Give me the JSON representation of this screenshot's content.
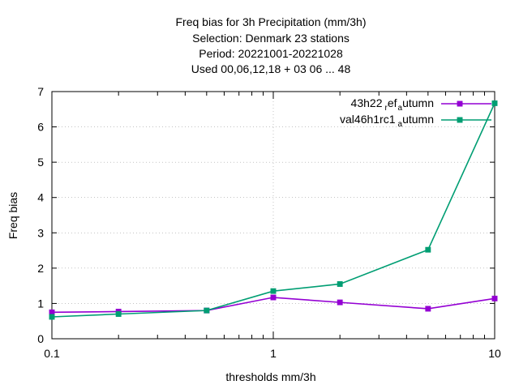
{
  "chart_data": {
    "type": "line",
    "title_lines": [
      "Freq bias  for 3h Precipitation (mm/3h)",
      "Selection: Denmark     23 stations",
      "Period: 20221001-20221028",
      "Used  00,06,12,18  + 03 06 ... 48"
    ],
    "xlabel": "thresholds mm/3h",
    "ylabel": "Freq bias",
    "x_scale": "log",
    "xlim": [
      0.1,
      10
    ],
    "ylim": [
      0,
      7
    ],
    "x_ticks": [
      {
        "value": 0.1,
        "label": "0.1"
      },
      {
        "value": 1,
        "label": "1"
      },
      {
        "value": 10,
        "label": "10"
      }
    ],
    "y_ticks": [
      {
        "value": 0,
        "label": "0"
      },
      {
        "value": 1,
        "label": "1"
      },
      {
        "value": 2,
        "label": "2"
      },
      {
        "value": 3,
        "label": "3"
      },
      {
        "value": 4,
        "label": "4"
      },
      {
        "value": 5,
        "label": "5"
      },
      {
        "value": 6,
        "label": "6"
      },
      {
        "value": 7,
        "label": "7"
      }
    ],
    "grid": true,
    "legend_position": "top-right",
    "x": [
      0.1,
      0.2,
      0.5,
      1,
      2,
      5,
      10
    ],
    "series": [
      {
        "name_parts": [
          "43h22",
          "r",
          "ef",
          "a",
          "utumn"
        ],
        "color": "#9400d3",
        "values": [
          0.75,
          0.77,
          0.8,
          1.17,
          1.03,
          0.85,
          1.14
        ]
      },
      {
        "name_parts": [
          "val46h1rc1",
          "a",
          "utumn"
        ],
        "color": "#009e73",
        "values": [
          0.62,
          0.7,
          0.8,
          1.35,
          1.55,
          2.52,
          6.67
        ]
      }
    ]
  }
}
